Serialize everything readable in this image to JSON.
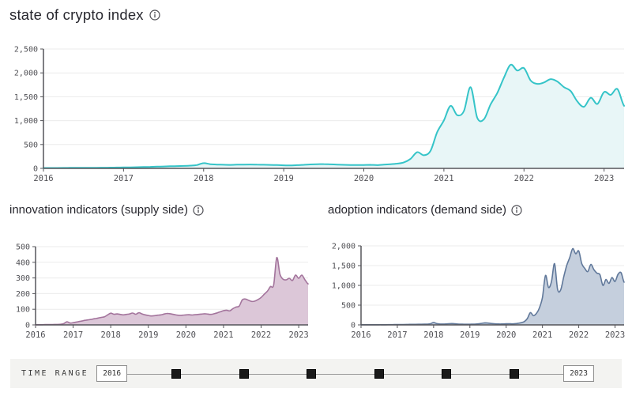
{
  "page": {
    "title": "state of crypto index",
    "background": "#ffffff"
  },
  "icons": {
    "info": "circle-i"
  },
  "time_range": {
    "label": "TIME RANGE",
    "start": "2016",
    "end": "2023",
    "handle_count": 6,
    "bar_color": "#f3f3f1",
    "handle_color": "#1a1a1a"
  },
  "chart_data": [
    {
      "type": "area",
      "title": "state of crypto index",
      "color": "#35c4c8",
      "fill_color": "#e8f6f7",
      "interval": "monthly",
      "x_start": "2016-01",
      "x_end": "2023-04",
      "xlim": [
        2016,
        2023.25
      ],
      "ylim": [
        0,
        2500
      ],
      "grid": true,
      "x_tick_labels": [
        "2016",
        "2017",
        "2018",
        "2019",
        "2020",
        "2021",
        "2022",
        "2023"
      ],
      "y_ticks": [
        0,
        500,
        1000,
        1500,
        2000,
        2500
      ],
      "y_tick_labels": [
        "0",
        "500",
        "1,000",
        "1,500",
        "2,000",
        "2,500"
      ],
      "values": [
        8,
        8,
        9,
        10,
        11,
        12,
        12,
        13,
        14,
        15,
        16,
        18,
        20,
        22,
        25,
        28,
        32,
        36,
        40,
        44,
        48,
        52,
        58,
        70,
        110,
        88,
        80,
        76,
        73,
        77,
        80,
        81,
        78,
        76,
        73,
        70,
        65,
        62,
        68,
        75,
        82,
        87,
        90,
        85,
        80,
        75,
        72,
        70,
        72,
        74,
        68,
        78,
        88,
        100,
        125,
        200,
        340,
        275,
        370,
        760,
        1005,
        1310,
        1115,
        1200,
        1700,
        1060,
        1030,
        1340,
        1580,
        1900,
        2170,
        2050,
        2100,
        1840,
        1770,
        1800,
        1870,
        1820,
        1700,
        1620,
        1400,
        1290,
        1480,
        1350,
        1600,
        1540,
        1660,
        1310
      ]
    },
    {
      "type": "area",
      "title": "innovation indicators (supply side)",
      "color": "#a3749c",
      "fill_color": "#dcc7d8",
      "interval": "monthly",
      "x_start": "2016-01",
      "x_end": "2023-04",
      "xlim": [
        2016,
        2023.25
      ],
      "ylim": [
        0,
        500
      ],
      "grid": true,
      "x_tick_labels": [
        "2016",
        "2017",
        "2018",
        "2019",
        "2020",
        "2021",
        "2022",
        "2023"
      ],
      "y_ticks": [
        0,
        100,
        200,
        300,
        400,
        500
      ],
      "y_tick_labels": [
        "0",
        "100",
        "200",
        "300",
        "400",
        "500"
      ],
      "values": [
        1,
        1,
        1,
        2,
        2,
        2,
        3,
        3,
        4,
        8,
        20,
        12,
        14,
        18,
        22,
        26,
        30,
        33,
        36,
        40,
        44,
        48,
        52,
        64,
        75,
        68,
        70,
        67,
        64,
        67,
        70,
        76,
        68,
        78,
        70,
        64,
        60,
        57,
        59,
        62,
        64,
        69,
        73,
        71,
        67,
        63,
        61,
        62,
        64,
        65,
        63,
        65,
        67,
        69,
        71,
        69,
        67,
        71,
        77,
        84,
        91,
        94,
        90,
        104,
        114,
        120,
        160,
        165,
        157,
        150,
        152,
        162,
        175,
        196,
        215,
        245,
        255,
        430,
        325,
        292,
        288,
        298,
        284,
        318,
        298,
        318,
        288,
        262
      ]
    },
    {
      "type": "area",
      "title": "adoption indicators (demand side)",
      "color": "#60789a",
      "fill_color": "#c5cfdd",
      "interval": "monthly",
      "x_start": "2016-01",
      "x_end": "2023-04",
      "xlim": [
        2016,
        2023.25
      ],
      "ylim": [
        0,
        2000
      ],
      "grid": true,
      "x_tick_labels": [
        "2016",
        "2017",
        "2018",
        "2019",
        "2020",
        "2021",
        "2022",
        "2023"
      ],
      "y_ticks": [
        0,
        500,
        1000,
        1500,
        2000
      ],
      "y_tick_labels": [
        "0",
        "500",
        "1,000",
        "1,500",
        "2,000"
      ],
      "values": [
        3,
        3,
        3,
        4,
        4,
        4,
        5,
        5,
        5,
        6,
        6,
        8,
        10,
        10,
        11,
        12,
        13,
        14,
        15,
        16,
        17,
        18,
        20,
        30,
        62,
        35,
        25,
        22,
        24,
        30,
        34,
        28,
        22,
        19,
        17,
        16,
        17,
        19,
        22,
        28,
        40,
        52,
        46,
        36,
        29,
        25,
        22,
        25,
        28,
        30,
        26,
        32,
        42,
        56,
        85,
        160,
        310,
        235,
        290,
        430,
        700,
        1250,
        950,
        1100,
        1550,
        900,
        880,
        1200,
        1500,
        1700,
        1930,
        1800,
        1870,
        1550,
        1430,
        1350,
        1530,
        1400,
        1310,
        1270,
        1000,
        1150,
        1050,
        1200,
        1100,
        1280,
        1320,
        1080
      ]
    }
  ]
}
